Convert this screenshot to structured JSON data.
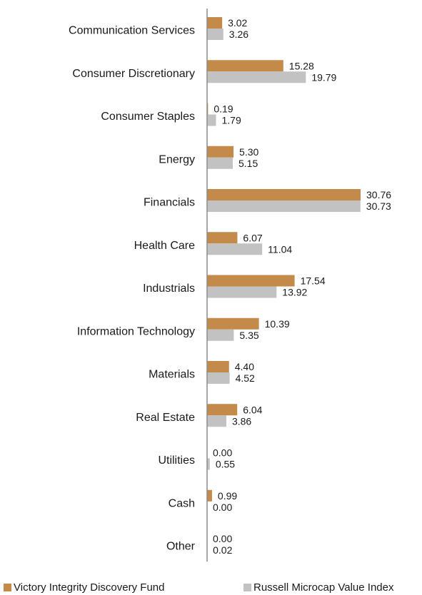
{
  "colors": {
    "fund": "#c48a4a",
    "index": "#c2c2c2",
    "axis": "#8c8c8c"
  },
  "legend": {
    "fund_label": "Victory Integrity Discovery Fund",
    "index_label": "Russell Microcap Value Index"
  },
  "chart_data": {
    "type": "bar",
    "orientation": "horizontal",
    "categories": [
      "Communication Services",
      "Consumer Discretionary",
      "Consumer Staples",
      "Energy",
      "Financials",
      "Health Care",
      "Industrials",
      "Information Technology",
      "Materials",
      "Real Estate",
      "Utilities",
      "Cash",
      "Other"
    ],
    "series": [
      {
        "name": "Victory Integrity Discovery Fund",
        "values": [
          3.02,
          15.28,
          0.19,
          5.3,
          30.76,
          6.07,
          17.54,
          10.39,
          4.4,
          6.04,
          0.0,
          0.99,
          0.0
        ]
      },
      {
        "name": "Russell Microcap Value Index",
        "values": [
          3.26,
          19.79,
          1.79,
          5.15,
          30.73,
          11.04,
          13.92,
          5.35,
          4.52,
          3.86,
          0.55,
          0.0,
          0.02
        ]
      }
    ],
    "value_labels": [
      [
        "3.02",
        "15.28",
        "0.19",
        "5.30",
        "30.76",
        "6.07",
        "17.54",
        "10.39",
        "4.40",
        "6.04",
        "0.00",
        "0.99",
        "0.00"
      ],
      [
        "3.26",
        "19.79",
        "1.79",
        "5.15",
        "30.73",
        "11.04",
        "13.92",
        "5.35",
        "4.52",
        "3.86",
        "0.55",
        "0.00",
        "0.02"
      ]
    ],
    "xlim": [
      0,
      30.76
    ],
    "grid": false,
    "legend_position": "bottom",
    "title": "",
    "xlabel": "",
    "ylabel": ""
  }
}
